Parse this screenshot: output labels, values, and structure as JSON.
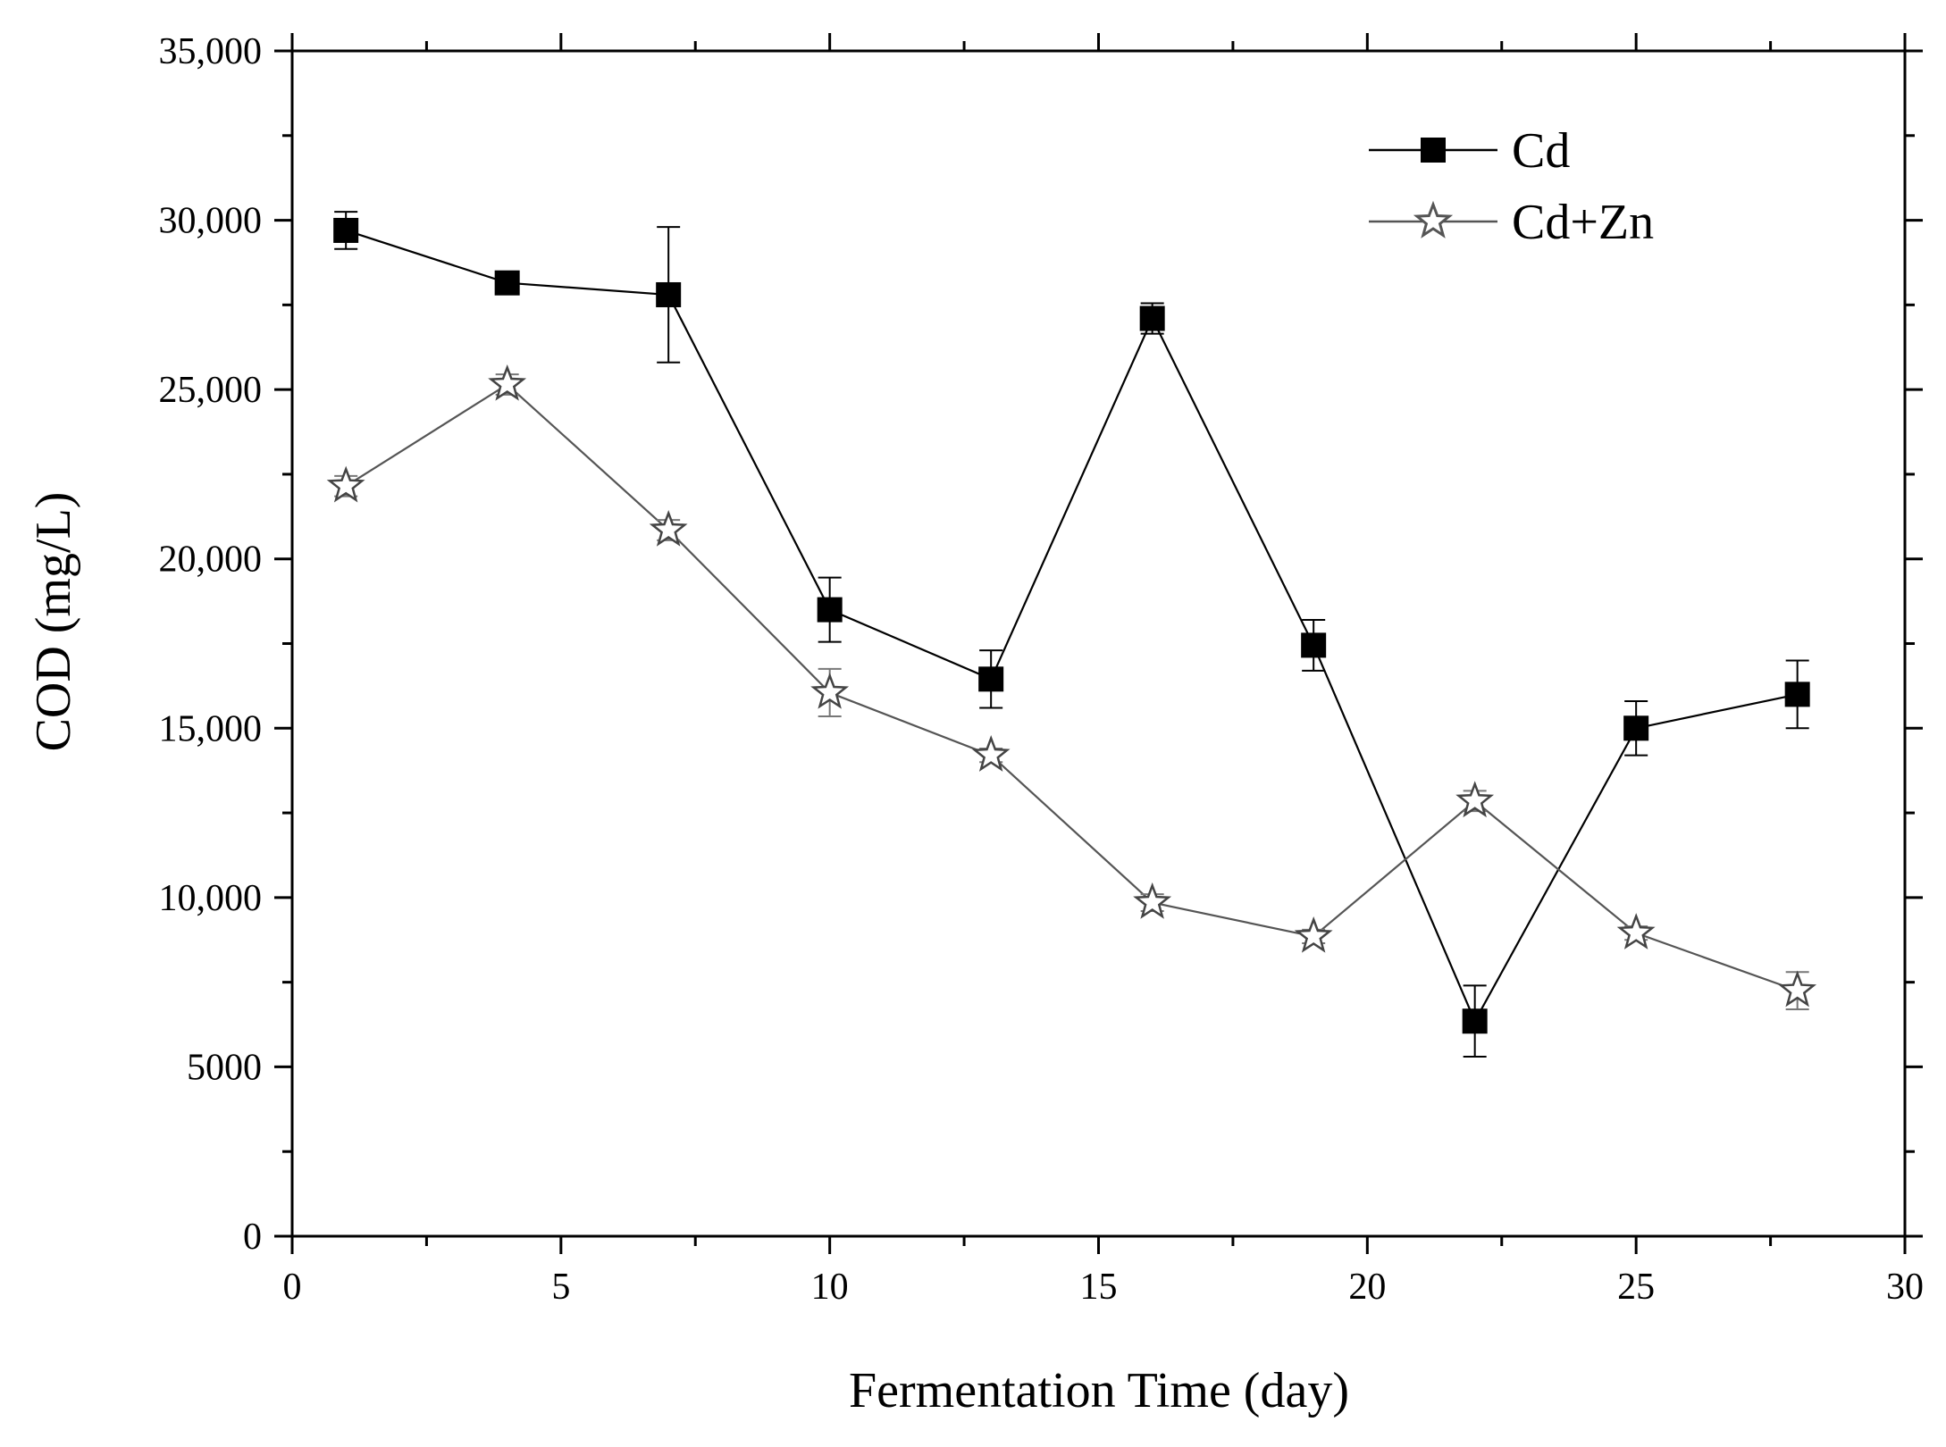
{
  "chart_data": {
    "type": "line",
    "title": "",
    "xlabel": "Fermentation Time (day)",
    "ylabel": "COD (mg/L)",
    "xlim": [
      0,
      30
    ],
    "ylim": [
      0,
      35000
    ],
    "x_ticks": [
      0,
      5,
      10,
      15,
      20,
      25,
      30
    ],
    "x_tick_labels": [
      "0",
      "5",
      "10",
      "15",
      "20",
      "25",
      "30"
    ],
    "y_ticks": [
      0,
      5000,
      10000,
      15000,
      20000,
      25000,
      30000,
      35000
    ],
    "y_tick_labels": [
      "0",
      "5000",
      "10,000",
      "15,000",
      "20,000",
      "25,000",
      "30,000",
      "35,000"
    ],
    "grid": false,
    "legend_position": "top-right",
    "series": [
      {
        "name": "Cd",
        "marker": "filled-square",
        "color": "#000000",
        "x": [
          1,
          4,
          7,
          10,
          13,
          16,
          19,
          22,
          25,
          28
        ],
        "y": [
          29700,
          28150,
          27800,
          18500,
          16450,
          27100,
          17450,
          6350,
          15000,
          16000
        ],
        "error": [
          550,
          150,
          2000,
          950,
          850,
          450,
          750,
          1050,
          800,
          1000
        ]
      },
      {
        "name": "Cd+Zn",
        "marker": "open-star",
        "color": "#555555",
        "x": [
          1,
          4,
          7,
          10,
          13,
          16,
          19,
          22,
          25,
          28
        ],
        "y": [
          22150,
          25150,
          20850,
          16050,
          14200,
          9850,
          8850,
          12850,
          8950,
          7250
        ],
        "error": [
          300,
          300,
          300,
          700,
          200,
          250,
          200,
          300,
          200,
          550
        ]
      }
    ]
  }
}
